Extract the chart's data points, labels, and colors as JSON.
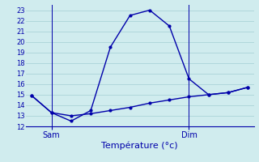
{
  "title": "Température (°c)",
  "bg_color": "#d0ecee",
  "grid_color": "#aad4d8",
  "line_color": "#0000aa",
  "ylim": [
    12,
    23.5
  ],
  "yticks": [
    12,
    13,
    14,
    15,
    16,
    17,
    18,
    19,
    20,
    21,
    22,
    23
  ],
  "xlim": [
    -0.3,
    11.3
  ],
  "line1_x": [
    0,
    1,
    2,
    3,
    4,
    5,
    6,
    7,
    8,
    9,
    10,
    11
  ],
  "line1_y": [
    14.9,
    13.3,
    12.5,
    13.5,
    19.5,
    22.5,
    23.0,
    21.5,
    16.5,
    15.0,
    15.2,
    15.7
  ],
  "line2_x": [
    0,
    1,
    2,
    3,
    4,
    5,
    6,
    7,
    8,
    9,
    10,
    11
  ],
  "line2_y": [
    14.9,
    13.3,
    13.0,
    13.2,
    13.5,
    13.8,
    14.2,
    14.5,
    14.8,
    15.0,
    15.2,
    15.7
  ],
  "sam_x": 1,
  "dim_x": 8,
  "sam_label": "Sam",
  "dim_label": "Dim",
  "ylabel_fontsize": 6,
  "xlabel_fontsize": 8,
  "xtick_fontsize": 7,
  "marker": ".",
  "markersize": 4,
  "linewidth": 1.0
}
